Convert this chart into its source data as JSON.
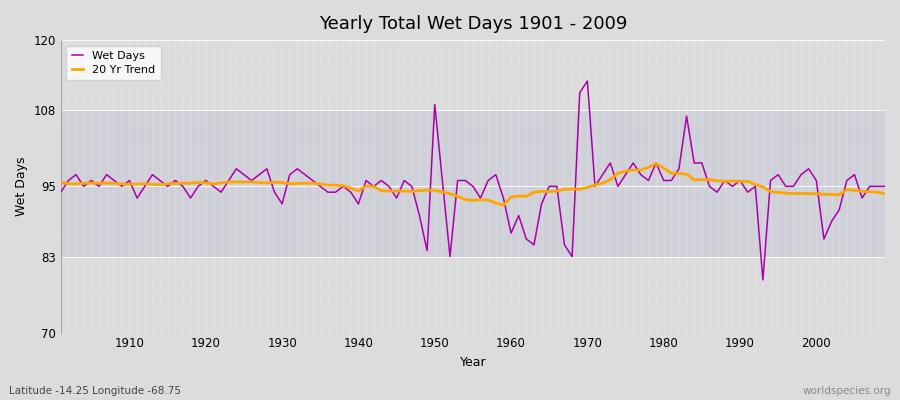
{
  "title": "Yearly Total Wet Days 1901 - 2009",
  "xlabel": "Year",
  "ylabel": "Wet Days",
  "subtitle": "Latitude -14.25 Longitude -68.75",
  "watermark": "worldspecies.org",
  "ylim": [
    70,
    120
  ],
  "yticks": [
    70,
    83,
    95,
    108,
    120
  ],
  "start_year": 1901,
  "end_year": 2009,
  "wet_days_color": "#aa00aa",
  "trend_color": "#ffa500",
  "bg_outer": "#dcdcdc",
  "bg_inner": "#d0d0d8",
  "wet_days": [
    94,
    96,
    97,
    95,
    96,
    95,
    97,
    96,
    95,
    96,
    93,
    95,
    97,
    96,
    95,
    96,
    95,
    93,
    95,
    96,
    95,
    94,
    96,
    98,
    97,
    96,
    97,
    98,
    94,
    92,
    97,
    98,
    97,
    96,
    95,
    94,
    94,
    95,
    94,
    92,
    96,
    95,
    96,
    95,
    93,
    96,
    95,
    90,
    84,
    109,
    96,
    83,
    96,
    96,
    95,
    93,
    96,
    97,
    93,
    87,
    90,
    86,
    85,
    92,
    95,
    95,
    85,
    83,
    111,
    113,
    95,
    97,
    99,
    95,
    97,
    99,
    97,
    96,
    99,
    96,
    96,
    98,
    107,
    99,
    99,
    95,
    94,
    96,
    95,
    96,
    94,
    95,
    79,
    96,
    97,
    95,
    95,
    97,
    98,
    96,
    86,
    89,
    91,
    96,
    97,
    93,
    95,
    95,
    95
  ]
}
